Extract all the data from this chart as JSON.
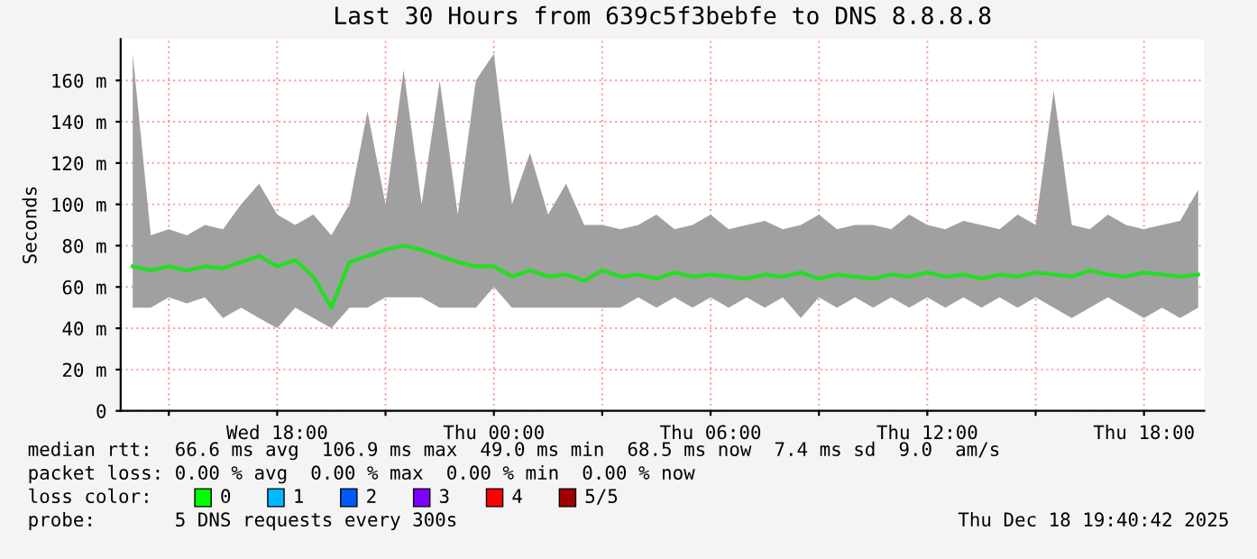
{
  "chart_data": {
    "type": "line",
    "title": "Last 30 Hours from 639c5f3bebfe to DNS 8.8.8.8",
    "ylabel": "Seconds",
    "x": [
      "2025-12-17T14:00",
      "2025-12-17T14:30",
      "2025-12-17T15:00",
      "2025-12-17T15:30",
      "2025-12-17T16:00",
      "2025-12-17T16:30",
      "2025-12-17T17:00",
      "2025-12-17T17:30",
      "2025-12-17T18:00",
      "2025-12-17T18:30",
      "2025-12-17T19:00",
      "2025-12-17T19:30",
      "2025-12-17T20:00",
      "2025-12-17T20:30",
      "2025-12-17T21:00",
      "2025-12-17T21:30",
      "2025-12-17T22:00",
      "2025-12-17T22:30",
      "2025-12-17T23:00",
      "2025-12-17T23:30",
      "2025-12-18T00:00",
      "2025-12-18T00:30",
      "2025-12-18T01:00",
      "2025-12-18T01:30",
      "2025-12-18T02:00",
      "2025-12-18T02:30",
      "2025-12-18T03:00",
      "2025-12-18T03:30",
      "2025-12-18T04:00",
      "2025-12-18T04:30",
      "2025-12-18T05:00",
      "2025-12-18T05:30",
      "2025-12-18T06:00",
      "2025-12-18T06:30",
      "2025-12-18T07:00",
      "2025-12-18T07:30",
      "2025-12-18T08:00",
      "2025-12-18T08:30",
      "2025-12-18T09:00",
      "2025-12-18T09:30",
      "2025-12-18T10:00",
      "2025-12-18T10:30",
      "2025-12-18T11:00",
      "2025-12-18T11:30",
      "2025-12-18T12:00",
      "2025-12-18T12:30",
      "2025-12-18T13:00",
      "2025-12-18T13:30",
      "2025-12-18T14:00",
      "2025-12-18T14:30",
      "2025-12-18T15:00",
      "2025-12-18T15:30",
      "2025-12-18T16:00",
      "2025-12-18T16:30",
      "2025-12-18T17:00",
      "2025-12-18T17:30",
      "2025-12-18T18:00",
      "2025-12-18T18:30",
      "2025-12-18T19:00",
      "2025-12-18T19:30"
    ],
    "series": [
      {
        "color": "#20e020",
        "values": [
          70,
          68,
          70,
          68,
          70,
          69,
          72,
          75,
          70,
          73,
          65,
          50,
          72,
          75,
          78,
          80,
          78,
          75,
          72,
          70,
          70,
          65,
          68,
          65,
          66,
          63,
          68,
          65,
          66,
          64,
          67,
          65,
          66,
          65,
          64,
          66,
          65,
          67,
          64,
          66,
          65,
          64,
          66,
          65,
          67,
          65,
          66,
          64,
          66,
          65,
          67,
          66,
          65,
          68,
          66,
          65,
          67,
          66,
          65,
          66
        ],
        "lower": [
          50,
          50,
          55,
          52,
          55,
          45,
          50,
          45,
          40,
          50,
          45,
          40,
          50,
          50,
          55,
          55,
          55,
          50,
          50,
          50,
          60,
          50,
          50,
          50,
          50,
          50,
          50,
          50,
          55,
          50,
          55,
          50,
          55,
          50,
          55,
          50,
          55,
          45,
          55,
          50,
          55,
          50,
          55,
          50,
          55,
          50,
          55,
          50,
          55,
          50,
          55,
          50,
          45,
          50,
          55,
          50,
          45,
          50,
          45,
          50
        ],
        "upper": [
          173,
          85,
          88,
          85,
          90,
          88,
          100,
          110,
          95,
          90,
          95,
          85,
          100,
          145,
          100,
          165,
          100,
          160,
          95,
          160,
          173,
          100,
          125,
          95,
          110,
          90,
          90,
          88,
          90,
          95,
          88,
          90,
          95,
          88,
          90,
          92,
          88,
          90,
          95,
          88,
          90,
          90,
          88,
          95,
          90,
          88,
          92,
          90,
          88,
          95,
          90,
          155,
          90,
          88,
          95,
          90,
          88,
          90,
          92,
          107
        ]
      }
    ],
    "xlim": [
      "2025-12-17T13:40",
      "2025-12-18T19:40"
    ],
    "xticks": [
      {
        "value": "2025-12-17T15:00",
        "label": null
      },
      {
        "value": "2025-12-17T18:00",
        "label": "Wed 18:00"
      },
      {
        "value": "2025-12-17T21:00",
        "label": null
      },
      {
        "value": "2025-12-18T00:00",
        "label": "Thu 00:00"
      },
      {
        "value": "2025-12-18T03:00",
        "label": null
      },
      {
        "value": "2025-12-18T06:00",
        "label": "Thu 06:00"
      },
      {
        "value": "2025-12-18T09:00",
        "label": null
      },
      {
        "value": "2025-12-18T12:00",
        "label": "Thu 12:00"
      },
      {
        "value": "2025-12-18T15:00",
        "label": null
      },
      {
        "value": "2025-12-18T18:00",
        "label": "Thu 18:00"
      }
    ],
    "ylim": [
      0,
      180
    ],
    "yticks": [
      0,
      {
        "value": 20,
        "label": "20 m"
      },
      {
        "value": 40,
        "label": "40 m"
      },
      {
        "value": 60,
        "label": "60 m"
      },
      {
        "value": 80,
        "label": "80 m"
      },
      {
        "value": 100,
        "label": "100 m"
      },
      {
        "value": 120,
        "label": "120 m"
      },
      {
        "value": 140,
        "label": "140 m"
      },
      {
        "value": 160,
        "label": "160 m"
      }
    ],
    "grid": true,
    "annotations": [
      "median rtt:  66.6 ms avg  106.9 ms max  49.0 ms min  68.5 ms now  7.4 ms sd  9.0  am/s",
      "packet loss: 0.00 % avg  0.00 % max  0.00 % min  0.00 % now",
      "loss color:",
      "0",
      "1",
      "2",
      "3",
      "4",
      "5/5",
      "probe:       5 DNS requests every 300s",
      "Thu Dec 18 19:40:42 2025"
    ]
  }
}
